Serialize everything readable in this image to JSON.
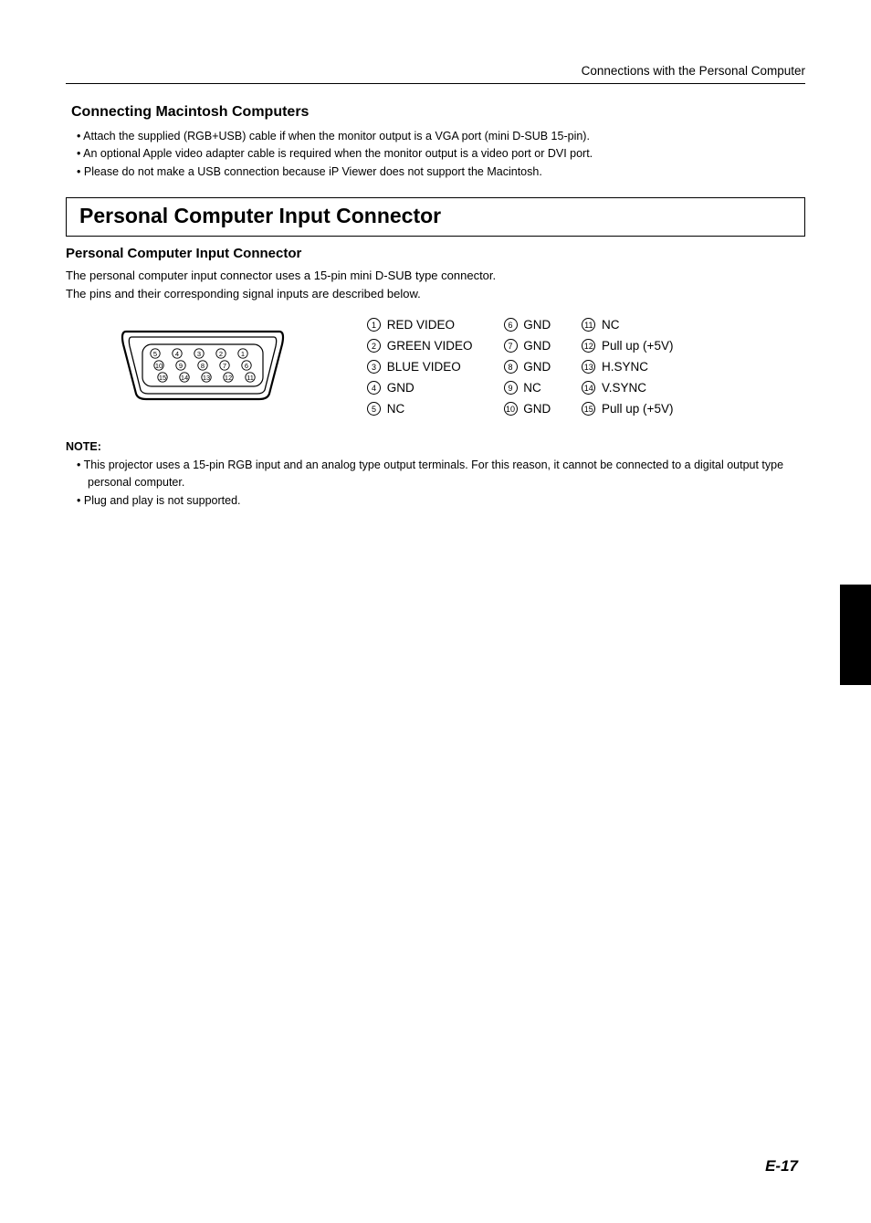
{
  "header": {
    "section": "Connections with the Personal Computer"
  },
  "mac": {
    "title": "Connecting Macintosh Computers",
    "bullets": [
      "Attach the supplied (RGB+USB) cable if when the monitor output is a VGA port (mini D-SUB 15-pin).",
      "An optional Apple video adapter cable is required when the monitor output is a video port or DVI port.",
      "Please do not make a USB connection because iP Viewer does not support the Macintosh."
    ]
  },
  "pci": {
    "boxTitle": "Personal Computer Input Connector",
    "subTitle": "Personal Computer Input Connector",
    "desc1": "The personal computer input connector uses a 15-pin mini D-SUB type connector.",
    "desc2": "The pins and their corresponding signal inputs are described below."
  },
  "pins": {
    "col1": [
      {
        "n": "1",
        "label": "RED VIDEO"
      },
      {
        "n": "2",
        "label": "GREEN VIDEO"
      },
      {
        "n": "3",
        "label": "BLUE VIDEO"
      },
      {
        "n": "4",
        "label": "GND"
      },
      {
        "n": "5",
        "label": "NC"
      }
    ],
    "col2": [
      {
        "n": "6",
        "label": "GND"
      },
      {
        "n": "7",
        "label": "GND"
      },
      {
        "n": "8",
        "label": "GND"
      },
      {
        "n": "9",
        "label": "NC"
      },
      {
        "n": "10",
        "label": "GND"
      }
    ],
    "col3": [
      {
        "n": "11",
        "label": "NC"
      },
      {
        "n": "12",
        "label": "Pull up (+5V)"
      },
      {
        "n": "13",
        "label": "H.SYNC"
      },
      {
        "n": "14",
        "label": "V.SYNC"
      },
      {
        "n": "15",
        "label": "Pull up (+5V)"
      }
    ]
  },
  "connector": {
    "row1": [
      "5",
      "4",
      "3",
      "2",
      "1"
    ],
    "row2": [
      "10",
      "9",
      "8",
      "7",
      "6"
    ],
    "row3": [
      "15",
      "14",
      "13",
      "12",
      "11"
    ]
  },
  "note": {
    "title": "NOTE:",
    "items": [
      "This projector uses a 15-pin RGB input and an analog type output terminals. For this reason, it cannot be connected to a digital output type personal computer.",
      "Plug and play is not supported."
    ]
  },
  "pageNumber": "E-17",
  "colors": {
    "text": "#000000",
    "bg": "#ffffff",
    "tab": "#000000"
  }
}
